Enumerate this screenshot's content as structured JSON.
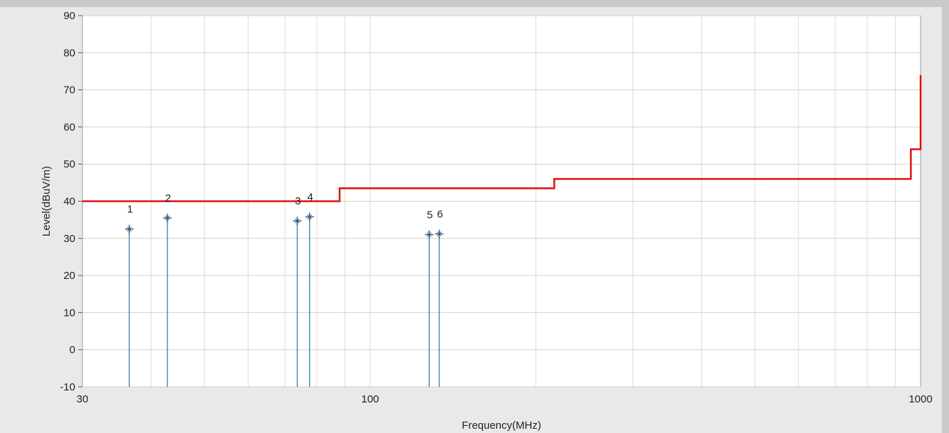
{
  "chart_data": {
    "type": "line",
    "title": "",
    "xlabel": "Frequency(MHz)",
    "ylabel": "Level(dBuV/m)",
    "x_scale": "log",
    "xlim": [
      30,
      1000
    ],
    "ylim": [
      -10,
      90
    ],
    "grid": true,
    "x_tick_labels": [
      {
        "value": 30,
        "label": "30"
      },
      {
        "value": 100,
        "label": "100"
      },
      {
        "value": 1000,
        "label": "1000"
      }
    ],
    "x_gridlines": [
      40,
      50,
      60,
      70,
      80,
      90,
      100,
      200,
      300,
      400,
      500,
      600,
      700,
      800,
      900
    ],
    "y_ticks": [
      -10,
      0,
      10,
      20,
      30,
      40,
      50,
      60,
      70,
      80,
      90
    ],
    "limit_line": {
      "color": "#e01010",
      "points": [
        [
          30,
          40
        ],
        [
          88,
          40
        ],
        [
          88,
          43.5
        ],
        [
          216,
          43.5
        ],
        [
          216,
          46
        ],
        [
          960,
          46
        ],
        [
          960,
          54
        ],
        [
          1000,
          54
        ],
        [
          1000,
          74
        ]
      ]
    },
    "markers": {
      "color": "#4a90b8",
      "points": [
        {
          "label": "1",
          "x": 36.5,
          "y": 32.5
        },
        {
          "label": "2",
          "x": 42.8,
          "y": 35.5
        },
        {
          "label": "3",
          "x": 73.7,
          "y": 34.7
        },
        {
          "label": "4",
          "x": 77.6,
          "y": 35.8
        },
        {
          "label": "5",
          "x": 128.0,
          "y": 31.0
        },
        {
          "label": "6",
          "x": 133.5,
          "y": 31.2
        }
      ]
    }
  }
}
